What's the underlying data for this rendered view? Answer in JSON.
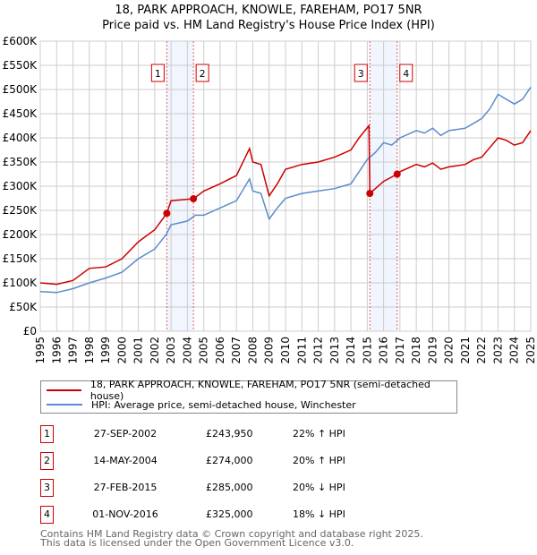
{
  "chart_data": {
    "type": "line",
    "title": "18, PARK APPROACH, KNOWLE, FAREHAM, PO17 5NR",
    "subtitle": "Price paid vs. HM Land Registry's House Price Index (HPI)",
    "xlabel": "",
    "ylabel": "",
    "xlim": [
      1995,
      2025
    ],
    "ylim": [
      0,
      600000
    ],
    "y_ticks": [
      0,
      50000,
      100000,
      150000,
      200000,
      250000,
      300000,
      350000,
      400000,
      450000,
      500000,
      550000,
      600000
    ],
    "y_tick_labels": [
      "£0",
      "£50K",
      "£100K",
      "£150K",
      "£200K",
      "£250K",
      "£300K",
      "£350K",
      "£400K",
      "£450K",
      "£500K",
      "£550K",
      "£600K"
    ],
    "x_ticks": [
      1995,
      1996,
      1997,
      1998,
      1999,
      2000,
      2001,
      2002,
      2003,
      2004,
      2005,
      2006,
      2007,
      2008,
      2009,
      2010,
      2011,
      2012,
      2013,
      2014,
      2015,
      2016,
      2017,
      2018,
      2019,
      2020,
      2021,
      2022,
      2023,
      2024,
      2025
    ],
    "grid": true,
    "series": [
      {
        "name": "18, PARK APPROACH, KNOWLE, FAREHAM, PO17 5NR (semi-detached house)",
        "color": "#cc0000",
        "x": [
          1995,
          1996,
          1997,
          1998,
          1999,
          2000,
          2001,
          2002,
          2002.74,
          2003,
          2004,
          2004.37,
          2005,
          2006,
          2007,
          2007.8,
          2008,
          2008.5,
          2009,
          2009.5,
          2010,
          2011,
          2012,
          2013,
          2014,
          2014.5,
          2015.1,
          2015.16,
          2016,
          2016.83,
          2017,
          2018,
          2018.5,
          2019,
          2019.5,
          2020,
          2021,
          2021.5,
          2022,
          2022.5,
          2023,
          2023.5,
          2024,
          2024.5,
          2025
        ],
        "values": [
          100000,
          97000,
          105000,
          130000,
          133000,
          150000,
          185000,
          210000,
          243950,
          270000,
          273000,
          274000,
          290000,
          305000,
          322000,
          378000,
          350000,
          345000,
          280000,
          305000,
          335000,
          345000,
          350000,
          360000,
          375000,
          400000,
          425000,
          285000,
          310000,
          325000,
          330000,
          345000,
          340000,
          348000,
          335000,
          340000,
          345000,
          355000,
          360000,
          380000,
          400000,
          395000,
          385000,
          390000,
          415000
        ]
      },
      {
        "name": "HPI: Average price, semi-detached house, Winchester",
        "color": "#5b8ccc",
        "x": [
          1995,
          1996,
          1997,
          1998,
          1999,
          2000,
          2001,
          2002,
          2002.7,
          2003,
          2004,
          2004.5,
          2005,
          2006,
          2007,
          2007.8,
          2008,
          2008.5,
          2009,
          2009.5,
          2010,
          2011,
          2012,
          2013,
          2014,
          2014.5,
          2015,
          2015.5,
          2016,
          2016.5,
          2017,
          2018,
          2018.5,
          2019,
          2019.5,
          2020,
          2021,
          2021.5,
          2022,
          2022.5,
          2023,
          2023.5,
          2024,
          2024.5,
          2025
        ],
        "values": [
          82000,
          80000,
          88000,
          100000,
          110000,
          122000,
          150000,
          170000,
          200000,
          220000,
          228000,
          240000,
          240000,
          255000,
          270000,
          315000,
          290000,
          285000,
          232000,
          255000,
          275000,
          285000,
          290000,
          295000,
          305000,
          330000,
          355000,
          370000,
          390000,
          385000,
          400000,
          415000,
          410000,
          420000,
          405000,
          415000,
          420000,
          430000,
          440000,
          460000,
          490000,
          480000,
          470000,
          480000,
          505000
        ]
      }
    ],
    "sales": [
      {
        "label": "1",
        "date": "27-SEP-2002",
        "x": 2002.74,
        "price": 243950,
        "price_text": "£243,950",
        "hpi": "22% ↑ HPI"
      },
      {
        "label": "2",
        "date": "14-MAY-2004",
        "x": 2004.37,
        "price": 274000,
        "price_text": "£274,000",
        "hpi": "20% ↑ HPI"
      },
      {
        "label": "3",
        "date": "27-FEB-2015",
        "x": 2015.16,
        "price": 285000,
        "price_text": "£285,000",
        "hpi": "20% ↓ HPI"
      },
      {
        "label": "4",
        "date": "01-NOV-2016",
        "x": 2016.83,
        "price": 325000,
        "price_text": "£325,000",
        "hpi": "18% ↓ HPI"
      }
    ],
    "shaded_ranges": [
      [
        2002.74,
        2004.37
      ],
      [
        2015.16,
        2016.83
      ]
    ]
  },
  "footer": {
    "line1": "Contains HM Land Registry data © Crown copyright and database right 2025.",
    "line2": "This data is licensed under the Open Government Licence v3.0."
  }
}
